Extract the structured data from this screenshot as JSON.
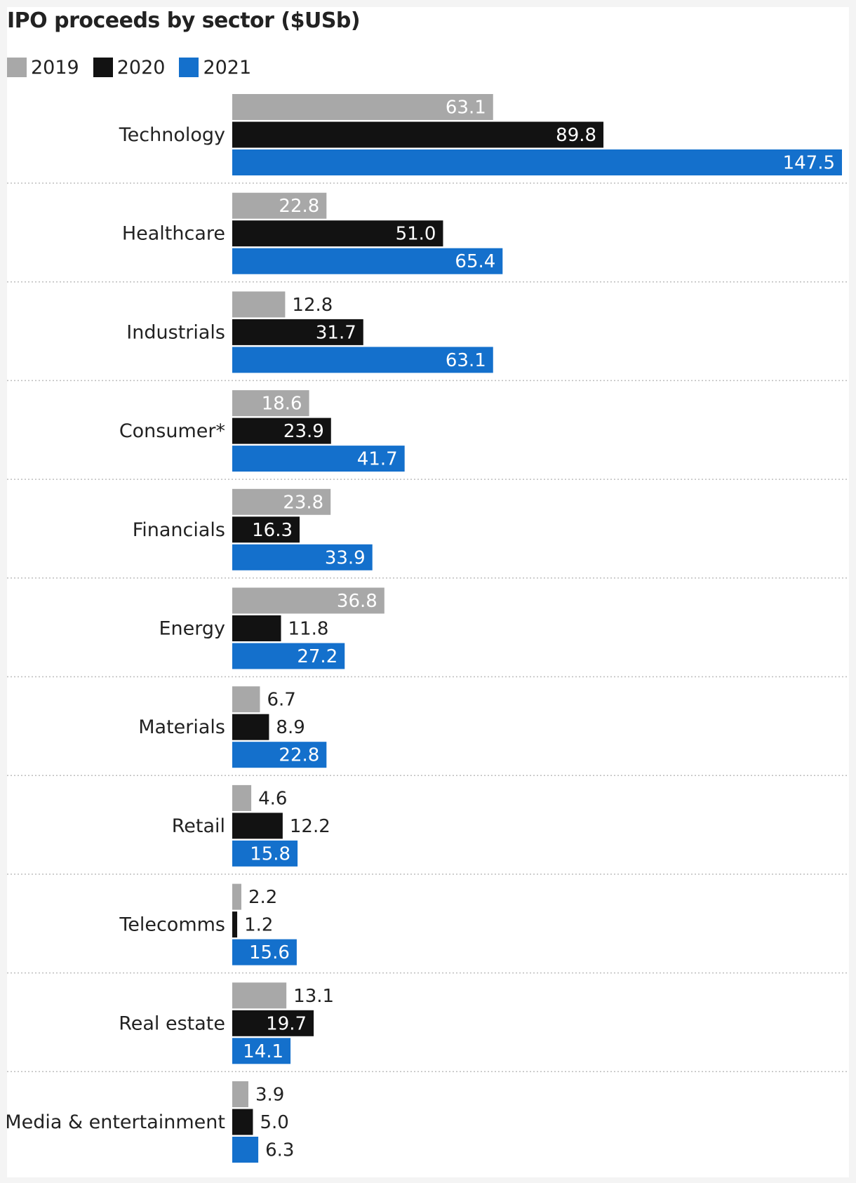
{
  "chart_data": {
    "type": "bar",
    "orientation": "horizontal",
    "title": "IPO proceeds by sector ($USb)",
    "legend_position": "top-left",
    "grid": false,
    "xlim": [
      0,
      147.5
    ],
    "categories": [
      "Technology",
      "Healthcare",
      "Industrials",
      "Consumer*",
      "Financials",
      "Energy",
      "Materials",
      "Retail",
      "Telecomms",
      "Real estate",
      "Media & entertainment"
    ],
    "series": [
      {
        "name": "2019",
        "color": "#a8a8a8",
        "values": [
          63.1,
          22.8,
          12.8,
          18.6,
          23.8,
          36.8,
          6.7,
          4.6,
          2.2,
          13.1,
          3.9
        ],
        "labels": [
          "63.1",
          "22.8",
          "12.8",
          "18.6",
          "23.8",
          "36.8",
          "6.7",
          "4.6",
          "2.2",
          "13.1",
          "3.9"
        ]
      },
      {
        "name": "2020",
        "color": "#121212",
        "values": [
          89.8,
          51.0,
          31.7,
          23.9,
          16.3,
          11.8,
          8.9,
          12.2,
          1.2,
          19.7,
          5.0
        ],
        "labels": [
          "89.8",
          "51.0",
          "31.7",
          "23.9",
          "16.3",
          "11.8",
          "8.9",
          "12.2",
          "1.2",
          "19.7",
          "5.0"
        ]
      },
      {
        "name": "2021",
        "color": "#1470cc",
        "values": [
          147.5,
          65.4,
          63.1,
          41.7,
          33.9,
          27.2,
          22.8,
          15.8,
          15.6,
          14.1,
          6.3
        ],
        "labels": [
          "147.5",
          "65.4",
          "63.1",
          "41.7",
          "33.9",
          "27.2",
          "22.8",
          "15.8",
          "15.6",
          "14.1",
          "6.3"
        ]
      }
    ]
  }
}
